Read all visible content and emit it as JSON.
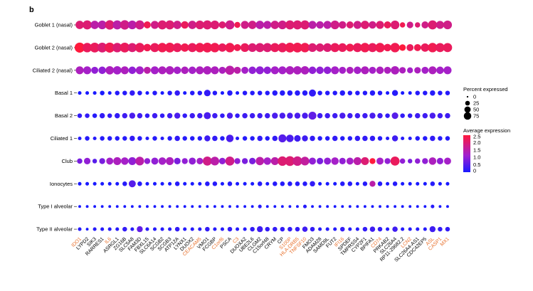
{
  "panel_label": "b",
  "chart_data": {
    "type": "dotplot",
    "rows": [
      "Goblet 1 (nasal)",
      "Goblet 2 (nasal)",
      "Ciliated 2 (nasal)",
      "Basal 1",
      "Basal 2",
      "Ciliated 1",
      "Club",
      "Ionocytes",
      "Type I alveolar",
      "Type II alveolar"
    ],
    "genes": [
      "IDO1",
      "LYPD2",
      "SIK3",
      "RARRES1",
      "IL6",
      "ASRGL1",
      "ZG16B",
      "SLC5A8",
      "FAM3D",
      "FBXL15",
      "SLC6A14",
      "SCGB2",
      "SCGB3",
      "ATP12A",
      "LYNX1",
      "DUOX2",
      "CEACAM5",
      "VMO1",
      "FCGBP",
      "C1orf6",
      "PSCA",
      "C3",
      "DUOXA2",
      "UBE2L6",
      "CLGM2",
      "C15orf48",
      "CRYM",
      "CP",
      "S100P",
      "HLA-DRB5",
      "TNFSF10",
      "FMO3",
      "ADAM28",
      "SAMD9L",
      "FUT2",
      "IFI16",
      "SPDEF",
      "TMPRSS4",
      "CYP2F1",
      "BPIFA1",
      "CD74",
      "PRKAB2",
      "SLC26A4",
      "RP11-29682.2",
      "LCN2",
      "SLC26A4-AS1",
      "CDC42EP5",
      "ASL",
      "CASP1",
      "MX1"
    ],
    "orange_genes": [
      "IDO1",
      "IL6",
      "CEACAM5",
      "C1orf6",
      "C3",
      "S100P",
      "HLA-DRB5",
      "TNFSF10",
      "IFI16",
      "CD74",
      "LCN2",
      "ASL",
      "CASP1",
      "MX1"
    ],
    "percent_expressed": [
      [
        45,
        55,
        45,
        50,
        60,
        55,
        60,
        50,
        55,
        30,
        40,
        55,
        55,
        45,
        35,
        45,
        50,
        55,
        50,
        30,
        55,
        20,
        40,
        45,
        45,
        40,
        45,
        50,
        55,
        55,
        55,
        40,
        35,
        40,
        50,
        35,
        30,
        40,
        45,
        35,
        40,
        30,
        50,
        15,
        25,
        15,
        30,
        55,
        40,
        50
      ],
      [
        70,
        60,
        65,
        65,
        70,
        60,
        65,
        55,
        60,
        35,
        55,
        60,
        65,
        55,
        45,
        55,
        60,
        65,
        60,
        45,
        60,
        30,
        50,
        50,
        55,
        55,
        55,
        60,
        65,
        65,
        60,
        50,
        45,
        50,
        55,
        50,
        40,
        55,
        60,
        55,
        60,
        35,
        60,
        25,
        30,
        30,
        45,
        60,
        55,
        55
      ],
      [
        40,
        40,
        30,
        35,
        45,
        45,
        40,
        35,
        40,
        30,
        40,
        40,
        45,
        35,
        35,
        35,
        40,
        45,
        40,
        30,
        55,
        30,
        30,
        35,
        40,
        35,
        40,
        40,
        45,
        45,
        45,
        35,
        35,
        35,
        40,
        30,
        30,
        35,
        40,
        30,
        35,
        30,
        45,
        25,
        20,
        25,
        30,
        40,
        35,
        40
      ],
      [
        5,
        5,
        5,
        10,
        5,
        10,
        10,
        15,
        10,
        5,
        10,
        5,
        10,
        15,
        5,
        10,
        10,
        25,
        10,
        5,
        15,
        5,
        10,
        10,
        10,
        10,
        15,
        15,
        15,
        15,
        15,
        30,
        10,
        10,
        10,
        15,
        10,
        10,
        10,
        15,
        10,
        5,
        20,
        5,
        5,
        10,
        10,
        15,
        10,
        10
      ],
      [
        10,
        10,
        10,
        15,
        10,
        15,
        15,
        20,
        15,
        10,
        15,
        10,
        15,
        20,
        10,
        15,
        15,
        30,
        15,
        10,
        20,
        10,
        15,
        15,
        15,
        15,
        20,
        20,
        20,
        20,
        20,
        40,
        15,
        15,
        15,
        20,
        15,
        15,
        15,
        20,
        15,
        10,
        25,
        10,
        10,
        15,
        15,
        20,
        15,
        15
      ],
      [
        5,
        10,
        5,
        10,
        10,
        10,
        10,
        15,
        10,
        5,
        10,
        5,
        10,
        15,
        10,
        10,
        10,
        20,
        15,
        10,
        35,
        5,
        10,
        10,
        15,
        10,
        15,
        40,
        35,
        25,
        20,
        15,
        10,
        10,
        15,
        10,
        10,
        15,
        15,
        15,
        10,
        5,
        20,
        5,
        5,
        10,
        10,
        15,
        10,
        10
      ],
      [
        15,
        25,
        10,
        20,
        30,
        40,
        35,
        40,
        50,
        20,
        30,
        35,
        40,
        25,
        20,
        30,
        25,
        55,
        50,
        25,
        55,
        20,
        20,
        25,
        45,
        35,
        40,
        60,
        65,
        60,
        50,
        30,
        25,
        30,
        35,
        25,
        30,
        40,
        40,
        20,
        30,
        20,
        55,
        15,
        10,
        15,
        20,
        35,
        25,
        30
      ],
      [
        5,
        5,
        5,
        5,
        5,
        5,
        10,
        30,
        10,
        5,
        5,
        5,
        5,
        10,
        5,
        5,
        5,
        10,
        10,
        5,
        10,
        5,
        5,
        5,
        10,
        5,
        10,
        10,
        10,
        10,
        10,
        15,
        5,
        5,
        5,
        10,
        10,
        5,
        10,
        20,
        10,
        5,
        10,
        5,
        5,
        5,
        5,
        10,
        5,
        5
      ],
      [
        2,
        2,
        2,
        2,
        2,
        2,
        2,
        2,
        2,
        2,
        2,
        2,
        2,
        2,
        2,
        2,
        2,
        2,
        2,
        2,
        2,
        2,
        2,
        2,
        5,
        2,
        2,
        2,
        2,
        2,
        5,
        2,
        2,
        2,
        2,
        2,
        2,
        2,
        2,
        2,
        2,
        2,
        2,
        2,
        2,
        2,
        2,
        5,
        2,
        2
      ],
      [
        5,
        2,
        5,
        5,
        5,
        5,
        10,
        5,
        20,
        5,
        5,
        5,
        5,
        10,
        5,
        5,
        5,
        10,
        5,
        5,
        10,
        5,
        5,
        10,
        20,
        10,
        10,
        10,
        10,
        10,
        15,
        10,
        5,
        5,
        5,
        10,
        5,
        5,
        10,
        15,
        10,
        5,
        15,
        5,
        5,
        5,
        5,
        20,
        10,
        10
      ]
    ],
    "average_expression": [
      [
        2.0,
        2.0,
        1.5,
        1.5,
        2.0,
        1.5,
        1.8,
        1.5,
        1.8,
        2.3,
        1.8,
        2.0,
        2.0,
        1.8,
        2.2,
        1.8,
        2.0,
        2.0,
        2.0,
        2.0,
        1.8,
        2.3,
        1.8,
        1.8,
        1.5,
        1.5,
        1.8,
        1.8,
        2.0,
        2.0,
        2.0,
        1.5,
        1.5,
        1.5,
        1.8,
        1.8,
        2.0,
        1.8,
        2.0,
        1.8,
        2.0,
        2.2,
        2.0,
        2.3,
        1.8,
        2.0,
        1.8,
        2.0,
        1.8,
        1.8
      ],
      [
        2.5,
        2.2,
        2.2,
        2.0,
        2.3,
        2.0,
        2.2,
        2.0,
        2.2,
        2.3,
        2.2,
        2.3,
        2.3,
        2.2,
        2.3,
        2.2,
        2.3,
        2.3,
        2.3,
        2.2,
        2.3,
        2.3,
        2.2,
        2.0,
        2.0,
        2.0,
        2.2,
        2.2,
        2.3,
        2.3,
        2.3,
        2.0,
        2.0,
        2.0,
        2.2,
        2.2,
        2.3,
        2.2,
        2.3,
        2.2,
        2.3,
        2.3,
        2.3,
        2.5,
        2.2,
        2.3,
        2.2,
        2.3,
        2.2,
        2.2
      ],
      [
        1.3,
        1.2,
        1.0,
        1.0,
        1.3,
        1.2,
        1.3,
        1.0,
        1.2,
        1.5,
        1.2,
        1.3,
        1.3,
        1.2,
        1.3,
        1.2,
        1.3,
        1.3,
        1.3,
        1.3,
        1.5,
        1.5,
        1.2,
        1.0,
        1.0,
        1.0,
        1.2,
        1.2,
        1.3,
        1.3,
        1.3,
        1.0,
        1.0,
        1.0,
        1.2,
        1.2,
        1.3,
        1.2,
        1.3,
        1.2,
        1.3,
        1.3,
        1.3,
        1.3,
        1.2,
        1.3,
        1.2,
        1.3,
        1.2,
        1.2
      ],
      [
        0.0,
        0.0,
        0.0,
        0.0,
        0.0,
        0.1,
        0.1,
        0.2,
        0.1,
        0.0,
        0.1,
        0.0,
        0.1,
        0.2,
        0.0,
        0.1,
        0.1,
        0.2,
        0.1,
        0.0,
        0.1,
        0.0,
        0.1,
        0.1,
        0.1,
        0.1,
        0.1,
        0.1,
        0.1,
        0.1,
        0.1,
        0.2,
        0.1,
        0.1,
        0.1,
        0.1,
        0.1,
        0.1,
        0.1,
        0.1,
        0.1,
        0.0,
        0.1,
        0.0,
        0.0,
        0.1,
        0.1,
        0.1,
        0.1,
        0.1
      ],
      [
        0.2,
        0.2,
        0.1,
        0.2,
        0.2,
        0.2,
        0.3,
        0.4,
        0.3,
        0.2,
        0.3,
        0.2,
        0.3,
        0.4,
        0.2,
        0.3,
        0.3,
        0.4,
        0.3,
        0.2,
        0.4,
        0.2,
        0.3,
        0.3,
        0.3,
        0.3,
        0.4,
        0.4,
        0.4,
        0.4,
        0.4,
        0.6,
        0.3,
        0.3,
        0.3,
        0.4,
        0.3,
        0.3,
        0.3,
        0.4,
        0.3,
        0.2,
        0.5,
        0.2,
        0.2,
        0.3,
        0.3,
        0.4,
        0.3,
        0.3
      ],
      [
        0.1,
        0.1,
        0.1,
        0.1,
        0.1,
        0.1,
        0.1,
        0.2,
        0.1,
        0.1,
        0.1,
        0.1,
        0.1,
        0.2,
        0.1,
        0.1,
        0.1,
        0.3,
        0.2,
        0.1,
        0.4,
        0.1,
        0.1,
        0.1,
        0.2,
        0.1,
        0.2,
        0.5,
        0.4,
        0.3,
        0.3,
        0.2,
        0.1,
        0.1,
        0.2,
        0.1,
        0.1,
        0.2,
        0.2,
        0.2,
        0.1,
        0.1,
        0.3,
        0.1,
        0.1,
        0.1,
        0.1,
        0.2,
        0.1,
        0.1
      ],
      [
        0.8,
        1.0,
        0.5,
        0.8,
        1.2,
        1.3,
        1.2,
        1.0,
        1.5,
        1.0,
        1.0,
        1.2,
        1.3,
        0.8,
        1.0,
        1.0,
        1.2,
        1.8,
        1.5,
        1.0,
        1.8,
        1.0,
        0.8,
        0.8,
        1.5,
        1.2,
        1.5,
        2.0,
        2.0,
        1.8,
        1.6,
        1.0,
        0.8,
        1.0,
        1.2,
        1.0,
        1.2,
        1.5,
        2.0,
        2.5,
        1.2,
        1.0,
        2.2,
        1.0,
        0.8,
        1.0,
        1.0,
        1.3,
        1.0,
        1.2
      ],
      [
        0.0,
        0.0,
        0.0,
        0.0,
        0.0,
        0.0,
        0.1,
        0.5,
        0.1,
        0.0,
        0.0,
        0.0,
        0.0,
        0.1,
        0.0,
        0.0,
        0.0,
        0.1,
        0.1,
        0.0,
        0.1,
        0.0,
        0.0,
        0.0,
        0.1,
        0.0,
        0.1,
        0.1,
        0.1,
        0.1,
        0.1,
        0.2,
        0.0,
        0.0,
        0.0,
        0.1,
        0.1,
        0.0,
        0.1,
        1.5,
        0.1,
        0.0,
        0.1,
        0.0,
        0.0,
        0.0,
        0.0,
        0.1,
        0.0,
        0.0
      ],
      [
        0.0,
        0.0,
        0.0,
        0.0,
        0.0,
        0.0,
        0.0,
        0.0,
        0.0,
        0.0,
        0.0,
        0.0,
        0.0,
        0.0,
        0.0,
        0.0,
        0.0,
        0.0,
        0.0,
        0.0,
        0.0,
        0.0,
        0.0,
        0.0,
        0.1,
        0.0,
        0.0,
        0.0,
        0.0,
        0.0,
        0.1,
        0.0,
        0.0,
        0.0,
        0.0,
        0.0,
        0.0,
        0.0,
        0.0,
        0.0,
        0.0,
        0.0,
        0.0,
        0.0,
        0.0,
        0.0,
        0.0,
        0.1,
        0.0,
        0.0
      ],
      [
        0.1,
        0.0,
        0.1,
        0.1,
        0.1,
        0.1,
        0.2,
        0.1,
        0.6,
        0.1,
        0.1,
        0.1,
        0.1,
        0.2,
        0.1,
        0.1,
        0.1,
        0.2,
        0.1,
        0.1,
        0.2,
        0.1,
        0.1,
        0.2,
        0.3,
        0.2,
        0.2,
        0.2,
        0.2,
        0.2,
        0.3,
        0.2,
        0.1,
        0.1,
        0.1,
        0.2,
        0.1,
        0.1,
        0.2,
        0.3,
        0.2,
        0.1,
        0.3,
        0.1,
        0.1,
        0.1,
        0.1,
        0.3,
        0.2,
        0.2
      ]
    ],
    "legend": {
      "size_title": "Percent expressed",
      "size_values": [
        0,
        25,
        50,
        75
      ],
      "size_labels": [
        "0",
        "25",
        "50",
        "75"
      ],
      "color_title": "Average expression",
      "color_ticks": [
        2.5,
        2.0,
        1.5,
        1.0,
        0.5,
        0
      ],
      "color_tick_labels": [
        "2.5",
        "2.0",
        "1.5",
        "1.0",
        "0.5",
        "0"
      ],
      "color_range": [
        0,
        2.5
      ],
      "placement": "right"
    },
    "colors": {
      "low": "#1a1aff",
      "mid": "#a020d0",
      "high": "#ff1a3c",
      "orange_label": "#e8722e",
      "row_guide": "#bbbbbb"
    }
  }
}
